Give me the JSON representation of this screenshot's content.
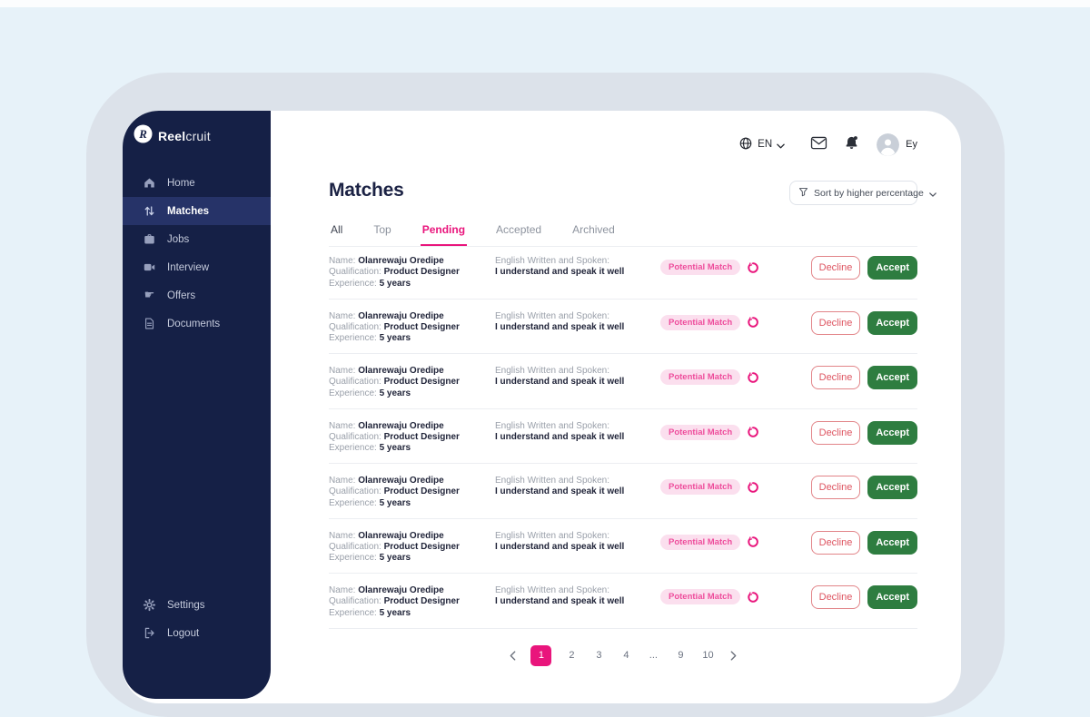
{
  "brand": {
    "name_bold": "Reel",
    "name_light": "cruit"
  },
  "topbar": {
    "language": "EN",
    "user_label": "Ey"
  },
  "sidebar": {
    "items": [
      {
        "label": "Home",
        "icon": "home-icon",
        "active": false
      },
      {
        "label": "Matches",
        "icon": "matches-icon",
        "active": true
      },
      {
        "label": "Jobs",
        "icon": "jobs-icon",
        "active": false
      },
      {
        "label": "Interview",
        "icon": "interview-icon",
        "active": false
      },
      {
        "label": "Offers",
        "icon": "offers-icon",
        "active": false
      },
      {
        "label": "Documents",
        "icon": "documents-icon",
        "active": false
      }
    ],
    "footer_items": [
      {
        "label": "Settings",
        "icon": "settings-icon"
      },
      {
        "label": "Logout",
        "icon": "logout-icon"
      }
    ]
  },
  "header": {
    "title": "Matches",
    "sort_label": "Sort by higher percentage"
  },
  "tabs": [
    {
      "label": "All",
      "active": false
    },
    {
      "label": "Top",
      "active": false
    },
    {
      "label": "Pending",
      "active": true
    },
    {
      "label": "Accepted",
      "active": false
    },
    {
      "label": "Archived",
      "active": false
    }
  ],
  "matches": {
    "row_labels": {
      "name": "Name:",
      "qualification": "Qualification:",
      "experience": "Experience:",
      "english": "English Written and Spoken:"
    },
    "actions": {
      "decline": "Decline",
      "accept": "Accept"
    },
    "rows": [
      {
        "name": "Olanrewaju Oredipe",
        "qualification": "Product Designer",
        "experience": "5 years",
        "english": "I understand and speak it well",
        "badge": "Potential Match"
      },
      {
        "name": "Olanrewaju Oredipe",
        "qualification": "Product Designer",
        "experience": "5 years",
        "english": "I understand and speak it well",
        "badge": "Potential Match"
      },
      {
        "name": "Olanrewaju Oredipe",
        "qualification": "Product Designer",
        "experience": "5 years",
        "english": "I understand and speak it well",
        "badge": "Potential Match"
      },
      {
        "name": "Olanrewaju Oredipe",
        "qualification": "Product Designer",
        "experience": "5 years",
        "english": "I understand and speak it well",
        "badge": "Potential Match"
      },
      {
        "name": "Olanrewaju Oredipe",
        "qualification": "Product Designer",
        "experience": "5 years",
        "english": "I understand and speak it well",
        "badge": "Potential Match"
      },
      {
        "name": "Olanrewaju Oredipe",
        "qualification": "Product Designer",
        "experience": "5 years",
        "english": "I understand and speak it well",
        "badge": "Potential Match"
      },
      {
        "name": "Olanrewaju Oredipe",
        "qualification": "Product Designer",
        "experience": "5 years",
        "english": "I understand and speak it well",
        "badge": "Potential Match"
      }
    ]
  },
  "pagination": {
    "pages": [
      "1",
      "2",
      "3",
      "4",
      "...",
      "9",
      "10"
    ],
    "active": "1"
  },
  "colors": {
    "accent_pink": "#E9157C",
    "badge_bg": "#FBDFEE",
    "badge_text": "#EE4D9C",
    "accept_green": "#2E7D40",
    "decline_red": "#DE5460",
    "sidebar_navy": "#152046",
    "sidebar_active": "#263368"
  }
}
